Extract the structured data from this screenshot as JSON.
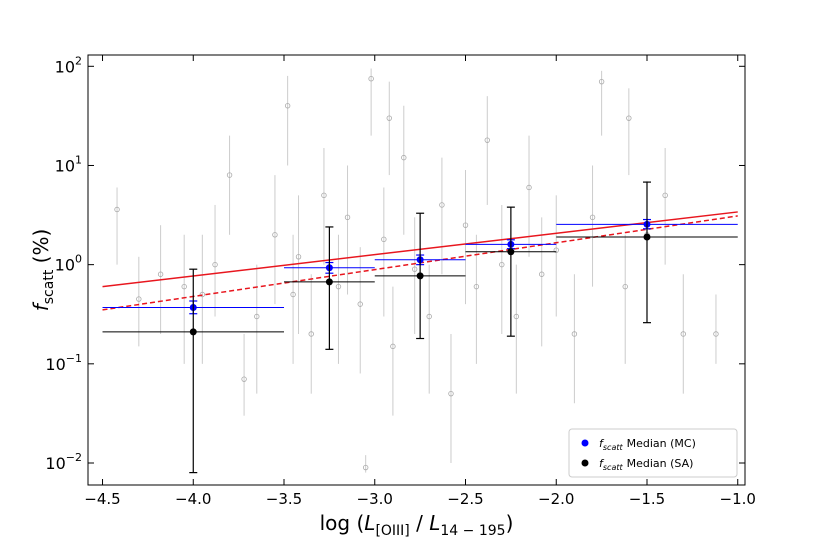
{
  "chart_data": {
    "type": "scatter",
    "ylog": true,
    "xlim": [
      -4.58,
      -0.96
    ],
    "ylim": [
      0.006,
      130
    ],
    "xticks": [
      {
        "value": -4.5,
        "label": "−4.5"
      },
      {
        "value": -4.0,
        "label": "−4.0"
      },
      {
        "value": -3.5,
        "label": "−3.5"
      },
      {
        "value": -3.0,
        "label": "−3.0"
      },
      {
        "value": -2.5,
        "label": "−2.5"
      },
      {
        "value": -2.0,
        "label": "−2.0"
      },
      {
        "value": -1.5,
        "label": "−1.5"
      },
      {
        "value": -1.0,
        "label": "−1.0"
      }
    ],
    "yticks": [
      {
        "value": 0.01,
        "label": "10",
        "exp": "−2"
      },
      {
        "value": 0.1,
        "label": "10",
        "exp": "−1"
      },
      {
        "value": 1,
        "label": "10",
        "exp": "0"
      },
      {
        "value": 10,
        "label": "10",
        "exp": "1"
      },
      {
        "value": 100,
        "label": "10",
        "exp": "2"
      }
    ],
    "xlabel_parts": [
      {
        "text": "log (",
        "style": "normal"
      },
      {
        "text": "L",
        "style": "italic"
      },
      {
        "text": "[OIII]",
        "style": "sub"
      },
      {
        "text": " / ",
        "style": "normal"
      },
      {
        "text": "L",
        "style": "italic"
      },
      {
        "text": "14 − 195",
        "style": "sub"
      },
      {
        "text": ")",
        "style": "normal"
      }
    ],
    "ylabel_parts": [
      {
        "text": "f",
        "style": "italic"
      },
      {
        "text": "scatt",
        "style": "sub"
      },
      {
        "text": " (%)",
        "style": "normal"
      }
    ],
    "background": {
      "color": "#aaaaaa",
      "x": [
        -4.42,
        -4.3,
        -4.18,
        -4.05,
        -3.95,
        -3.88,
        -3.8,
        -3.72,
        -3.65,
        -3.55,
        -3.48,
        -3.42,
        -3.35,
        -3.28,
        -3.2,
        -3.15,
        -3.08,
        -3.02,
        -2.95,
        -2.9,
        -2.84,
        -2.78,
        -2.7,
        -2.63,
        -2.58,
        -2.5,
        -2.44,
        -2.38,
        -2.3,
        -2.22,
        -2.15,
        -2.08,
        -2.0,
        -1.9,
        -1.8,
        -1.75,
        -1.62,
        -1.5,
        -1.4,
        -1.3,
        -1.12,
        -3.05,
        -2.92,
        -3.45,
        -1.6
      ],
      "values": [
        3.6,
        0.45,
        0.8,
        0.6,
        0.5,
        1.0,
        8.0,
        0.07,
        0.3,
        2.0,
        40,
        1.2,
        0.2,
        5.0,
        0.6,
        3.0,
        0.4,
        75,
        1.8,
        0.15,
        12,
        0.9,
        0.3,
        4.0,
        0.05,
        2.5,
        0.6,
        18,
        1.0,
        0.3,
        6.0,
        0.8,
        1.4,
        0.2,
        3.0,
        70,
        0.6,
        2.0,
        5.0,
        0.2,
        0.2,
        0.009,
        30,
        0.5,
        30
      ],
      "lower": [
        1.0,
        0.15,
        0.2,
        0.1,
        0.1,
        0.3,
        2.0,
        0.03,
        0.05,
        0.4,
        10,
        0.2,
        0.05,
        1.0,
        0.1,
        0.5,
        0.08,
        20,
        0.3,
        0.03,
        2.0,
        0.2,
        0.05,
        0.8,
        0.01,
        0.4,
        0.1,
        4.0,
        0.2,
        0.05,
        1.2,
        0.15,
        0.3,
        0.04,
        0.6,
        20,
        0.1,
        0.4,
        1.0,
        0.05,
        0.1,
        0.008,
        8.0,
        0.1,
        8.0
      ],
      "upper": [
        6.0,
        1.2,
        2.5,
        2.0,
        2.0,
        4.0,
        20,
        0.2,
        1.0,
        8.0,
        80,
        5.0,
        0.8,
        15,
        2.0,
        10,
        1.5,
        95,
        6.0,
        0.6,
        40,
        3.0,
        1.0,
        12,
        0.2,
        9.0,
        2.0,
        50,
        4.0,
        1.0,
        20,
        3.0,
        5.0,
        0.8,
        10,
        90,
        2.0,
        7.0,
        15,
        0.8,
        0.5,
        0.012,
        70,
        2.0,
        60
      ]
    },
    "series": [
      {
        "name": "Median (MC)",
        "name_symbol": "f",
        "name_subscript": "scatt",
        "color": "#0000ff",
        "x": [
          -4.0,
          -3.25,
          -2.75,
          -2.25,
          -1.5
        ],
        "values": [
          0.37,
          0.93,
          1.12,
          1.6,
          2.55
        ],
        "xlow": [
          -4.5,
          -3.5,
          -3.0,
          -2.5,
          -2.0
        ],
        "xhigh": [
          -3.5,
          -3.0,
          -2.5,
          -2.0,
          -1.0
        ],
        "lower": [
          0.32,
          0.82,
          1.0,
          1.45,
          2.3
        ],
        "upper": [
          0.43,
          1.05,
          1.25,
          1.78,
          2.85
        ]
      },
      {
        "name": "Median (SA)",
        "name_symbol": "f",
        "name_subscript": "scatt",
        "color": "#000000",
        "x": [
          -4.0,
          -3.25,
          -2.75,
          -2.25,
          -1.5
        ],
        "values": [
          0.21,
          0.67,
          0.77,
          1.35,
          1.9
        ],
        "xlow": [
          -4.5,
          -3.5,
          -3.0,
          -2.5,
          -2.0
        ],
        "xhigh": [
          -3.5,
          -3.0,
          -2.5,
          -2.0,
          -1.0
        ],
        "lower": [
          0.008,
          0.14,
          0.18,
          0.19,
          0.26
        ],
        "upper": [
          0.9,
          2.4,
          3.3,
          3.8,
          6.8
        ]
      }
    ],
    "lines": [
      {
        "color": "#e8161e",
        "style": "solid",
        "x": [
          -4.5,
          -1.0
        ],
        "values": [
          0.6,
          3.4
        ]
      },
      {
        "color": "#e8161e",
        "style": "dashed",
        "x": [
          -4.5,
          -1.0
        ],
        "values": [
          0.35,
          3.1
        ]
      }
    ],
    "legend": "lower right"
  }
}
